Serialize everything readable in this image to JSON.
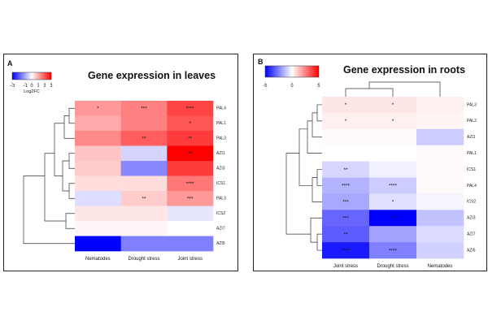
{
  "chart_data": [
    {
      "type": "heatmap",
      "panel_label": "A",
      "title": "Gene expression in leaves",
      "columns": [
        "Nematodes",
        "Drought stress",
        "Joint  stress"
      ],
      "rows": [
        "PAL4",
        "PAL1",
        "PAL3",
        "AZI1",
        "AZI3",
        "ICS1",
        "PAL3",
        "ICS2",
        "AZI7",
        "AZI5"
      ],
      "values": [
        [
          1.2,
          1.5,
          2.2
        ],
        [
          1.0,
          1.5,
          2.0
        ],
        [
          1.4,
          1.9,
          2.3
        ],
        [
          0.7,
          -0.5,
          3.2
        ],
        [
          0.6,
          -1.4,
          2.3
        ],
        [
          0.4,
          0.4,
          1.6
        ],
        [
          -0.4,
          0.6,
          1.2
        ],
        [
          0.3,
          0.3,
          -0.3
        ],
        [
          0.1,
          0.1,
          0.0
        ],
        [
          -3.0,
          -1.5,
          -1.5
        ]
      ],
      "significance": [
        [
          "*",
          "***",
          "****"
        ],
        [
          "",
          "",
          "*"
        ],
        [
          "",
          "**",
          "**"
        ],
        [
          "",
          "",
          "**"
        ],
        [
          "",
          "",
          ""
        ],
        [
          "",
          "",
          "****"
        ],
        [
          "",
          "**",
          "***"
        ],
        [
          "",
          "",
          ""
        ],
        [
          "",
          "",
          ""
        ],
        [
          "",
          "",
          ""
        ]
      ],
      "colorbar": {
        "label": "Log2FC",
        "ticks": [
          "−3",
          "−1",
          "0",
          "1",
          "2",
          "3"
        ],
        "range": [
          -3,
          3
        ],
        "low_color": "#0000ff",
        "mid_color": "#ffffff",
        "high_color": "#ff0000"
      }
    },
    {
      "type": "heatmap",
      "panel_label": "B",
      "title": "Gene expression in roots",
      "columns": [
        "Joint  stress",
        "Drought stress",
        "Nematodes"
      ],
      "rows": [
        "PAL3",
        "PAL2",
        "AZI1",
        "PAL1",
        "ICS1",
        "PAL4",
        "ICS2",
        "AZI3",
        "AZI7",
        "AZI5"
      ],
      "values": [
        [
          0.5,
          0.5,
          0.3
        ],
        [
          0.3,
          0.3,
          0.2
        ],
        [
          0.1,
          0.1,
          -1.0
        ],
        [
          0.0,
          0.0,
          0.1
        ],
        [
          -0.8,
          -0.3,
          0.1
        ],
        [
          -1.5,
          -1.0,
          0.1
        ],
        [
          -1.7,
          -0.6,
          -0.2
        ],
        [
          -3.0,
          -5.0,
          -1.2
        ],
        [
          -3.2,
          -1.8,
          -0.7
        ],
        [
          -4.5,
          -2.5,
          -0.9
        ]
      ],
      "significance": [
        [
          "*",
          "*",
          ""
        ],
        [
          "*",
          "*",
          ""
        ],
        [
          "",
          "",
          ""
        ],
        [
          "",
          "",
          ""
        ],
        [
          "**",
          "",
          ""
        ],
        [
          "****",
          "****",
          ""
        ],
        [
          "***",
          "*",
          ""
        ],
        [
          "***",
          "**",
          ""
        ],
        [
          "**",
          "",
          ""
        ],
        [
          "****",
          "****",
          ""
        ]
      ],
      "colorbar": {
        "label": "",
        "ticks": [
          "-5",
          "0",
          "5"
        ],
        "range": [
          -5,
          5
        ],
        "low_color": "#0000ff",
        "mid_color": "#ffffff",
        "high_color": "#ff0000"
      }
    }
  ],
  "colors": {
    "border": "#222222",
    "low": "#0000ff",
    "high": "#ff0000"
  }
}
